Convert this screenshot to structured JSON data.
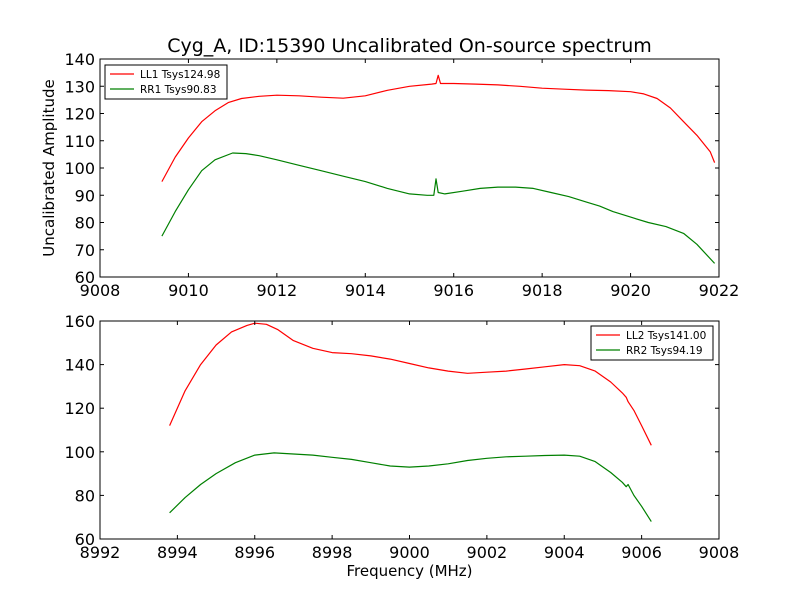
{
  "chart_data": [
    {
      "type": "line",
      "title": "Cyg_A, ID:15390 Uncalibrated On-source spectrum",
      "xlabel": "",
      "ylabel": "Uncalibrated Amplitude",
      "xlim": [
        9008,
        9022
      ],
      "ylim": [
        60,
        140
      ],
      "xticks": [
        9008,
        9010,
        9012,
        9014,
        9016,
        9018,
        9020,
        9022
      ],
      "yticks": [
        60,
        70,
        80,
        90,
        100,
        110,
        120,
        130,
        140
      ],
      "legend_position": "upper left",
      "series": [
        {
          "name": "LL1 Tsys124.98",
          "color": "#ff0000",
          "x": [
            9009.4,
            9009.7,
            9010.0,
            9010.3,
            9010.6,
            9010.9,
            9011.2,
            9011.6,
            9012.0,
            9012.5,
            9013.0,
            9013.5,
            9014.0,
            9014.5,
            9015.0,
            9015.5,
            9015.6,
            9015.65,
            9015.7,
            9016.0,
            9016.5,
            9017.0,
            9017.5,
            9018.0,
            9018.5,
            9019.0,
            9019.5,
            9020.0,
            9020.3,
            9020.6,
            9020.9,
            9021.2,
            9021.5,
            9021.8,
            9021.9
          ],
          "y": [
            95,
            104,
            111,
            117,
            121,
            124,
            125.5,
            126.3,
            126.7,
            126.5,
            126,
            125.6,
            126.5,
            128.5,
            130,
            130.8,
            131,
            134,
            131,
            131,
            130.8,
            130.5,
            130,
            129.3,
            128.9,
            128.6,
            128.4,
            128,
            127.2,
            125.5,
            122,
            117,
            112,
            106,
            102
          ]
        },
        {
          "name": "RR1 Tsys90.83",
          "color": "#008000",
          "x": [
            9009.4,
            9009.7,
            9010.0,
            9010.3,
            9010.6,
            9011.0,
            9011.3,
            9011.6,
            9012.0,
            9012.5,
            9013.0,
            9013.5,
            9014.0,
            9014.5,
            9015.0,
            9015.4,
            9015.55,
            9015.6,
            9015.65,
            9015.8,
            9016.2,
            9016.6,
            9017.0,
            9017.4,
            9017.8,
            9018.2,
            9018.6,
            9019.0,
            9019.3,
            9019.6,
            9020.0,
            9020.4,
            9020.8,
            9021.2,
            9021.5,
            9021.9
          ],
          "y": [
            75,
            84,
            92,
            99,
            103,
            105.5,
            105.3,
            104.5,
            103,
            101,
            99,
            97,
            95,
            92.5,
            90.5,
            90,
            90,
            96,
            91,
            90.5,
            91.5,
            92.5,
            93,
            93,
            92.5,
            91,
            89.5,
            87.5,
            86,
            84,
            82,
            80,
            78.5,
            76,
            72,
            65
          ]
        }
      ]
    },
    {
      "type": "line",
      "title": "",
      "xlabel": "Frequency (MHz)",
      "ylabel": "",
      "xlim": [
        8992,
        9008
      ],
      "ylim": [
        60,
        160
      ],
      "xticks": [
        8992,
        8994,
        8996,
        8998,
        9000,
        9002,
        9004,
        9006,
        9008
      ],
      "yticks": [
        60,
        80,
        100,
        120,
        140,
        160
      ],
      "legend_position": "upper right",
      "series": [
        {
          "name": "LL2 Tsys141.00",
          "color": "#ff0000",
          "x": [
            8993.8,
            8994.2,
            8994.6,
            8995.0,
            8995.4,
            8995.8,
            8996.0,
            8996.3,
            8996.6,
            8997.0,
            8997.5,
            8998.0,
            8998.5,
            8999.0,
            8999.5,
            9000.0,
            9000.5,
            9001.0,
            9001.5,
            9002.0,
            9002.5,
            9003.0,
            9003.5,
            9004.0,
            9004.4,
            9004.8,
            9005.2,
            9005.5,
            9005.6,
            9005.65,
            9005.8,
            9006.0,
            9006.25
          ],
          "y": [
            112,
            128,
            140,
            149,
            155,
            158,
            159,
            158.5,
            156,
            151,
            147.5,
            145.5,
            145,
            144,
            142.5,
            140.5,
            138.5,
            137,
            136,
            136.5,
            137,
            138,
            139,
            140,
            139.5,
            137,
            132,
            127,
            125,
            123,
            119,
            112,
            103
          ]
        },
        {
          "name": "RR2 Tsys94.19",
          "color": "#008000",
          "x": [
            8993.8,
            8994.2,
            8994.6,
            8995.0,
            8995.5,
            8996.0,
            8996.5,
            8997.0,
            8997.5,
            8998.0,
            8998.5,
            8999.0,
            8999.5,
            9000.0,
            9000.5,
            9001.0,
            9001.5,
            9002.0,
            9002.5,
            9003.0,
            9003.5,
            9004.0,
            9004.4,
            9004.8,
            9005.2,
            9005.5,
            9005.6,
            9005.65,
            9005.8,
            9006.0,
            9006.25
          ],
          "y": [
            72,
            79,
            85,
            90,
            95,
            98.5,
            99.5,
            99,
            98.5,
            97.5,
            96.5,
            95,
            93.5,
            93,
            93.5,
            94.5,
            96,
            97,
            97.7,
            98,
            98.3,
            98.5,
            98,
            95.5,
            90.5,
            86,
            84,
            85,
            80,
            75,
            68
          ]
        }
      ]
    }
  ]
}
